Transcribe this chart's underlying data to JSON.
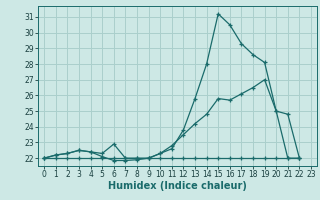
{
  "xlabel": "Humidex (Indice chaleur)",
  "bg_color": "#cde8e5",
  "grid_color": "#aacfcc",
  "line_color": "#1a6b6b",
  "xlim": [
    -0.5,
    23.5
  ],
  "ylim": [
    21.5,
    31.7
  ],
  "yticks": [
    22,
    23,
    24,
    25,
    26,
    27,
    28,
    29,
    30,
    31
  ],
  "xticks": [
    0,
    1,
    2,
    3,
    4,
    5,
    6,
    7,
    8,
    9,
    10,
    11,
    12,
    13,
    14,
    15,
    16,
    17,
    18,
    19,
    20,
    21,
    22,
    23
  ],
  "line1_x": [
    0,
    1,
    2,
    3,
    4,
    5,
    6,
    7,
    8,
    9,
    10,
    11,
    12,
    13,
    14,
    15,
    16,
    17,
    18,
    19,
    20,
    21,
    22
  ],
  "line1_y": [
    22.0,
    22.2,
    22.3,
    22.5,
    22.4,
    22.1,
    21.85,
    21.85,
    21.9,
    22.0,
    22.3,
    22.6,
    23.8,
    25.8,
    28.0,
    31.2,
    30.5,
    29.3,
    28.6,
    28.1,
    25.0,
    24.8,
    22.0
  ],
  "line2_x": [
    0,
    1,
    2,
    3,
    4,
    5,
    6,
    7,
    8,
    9,
    10,
    11,
    12,
    13,
    14,
    15,
    16,
    17,
    18,
    19,
    20,
    21,
    22
  ],
  "line2_y": [
    22.0,
    22.2,
    22.3,
    22.5,
    22.4,
    22.3,
    22.9,
    22.0,
    22.0,
    22.0,
    22.3,
    22.8,
    23.5,
    24.2,
    24.8,
    25.8,
    25.7,
    26.1,
    26.5,
    27.0,
    25.0,
    22.0,
    22.0
  ],
  "line3_x": [
    0,
    1,
    2,
    3,
    4,
    5,
    6,
    7,
    8,
    9,
    10,
    11,
    12,
    13,
    14,
    15,
    16,
    17,
    18,
    19,
    20,
    21,
    22
  ],
  "line3_y": [
    22.0,
    22.0,
    22.0,
    22.0,
    22.0,
    22.0,
    22.0,
    22.0,
    22.0,
    22.0,
    22.0,
    22.0,
    22.0,
    22.0,
    22.0,
    22.0,
    22.0,
    22.0,
    22.0,
    22.0,
    22.0,
    22.0,
    22.0
  ],
  "xlabel_fontsize": 7,
  "tick_fontsize": 5.5
}
